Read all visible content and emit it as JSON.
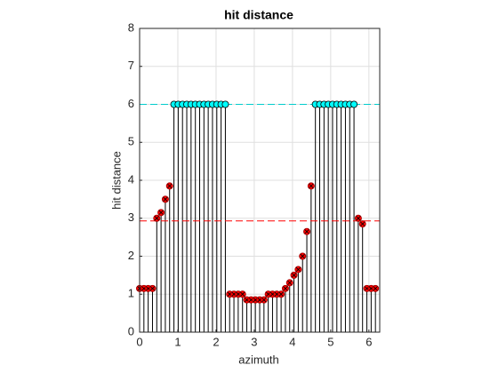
{
  "chart_data": {
    "type": "stem",
    "title": "hit distance",
    "xlabel": "azimuth",
    "ylabel": "hit distance",
    "x": [
      0,
      0.112,
      0.224,
      0.337,
      0.449,
      0.561,
      0.673,
      0.785,
      0.898,
      1.01,
      1.122,
      1.234,
      1.346,
      1.459,
      1.571,
      1.683,
      1.795,
      1.907,
      2.02,
      2.132,
      2.244,
      2.356,
      2.468,
      2.58,
      2.693,
      2.805,
      2.917,
      3.029,
      3.142,
      3.254,
      3.366,
      3.478,
      3.59,
      3.703,
      3.815,
      3.927,
      4.039,
      4.151,
      4.264,
      4.376,
      4.488,
      4.6,
      4.712,
      4.825,
      4.937,
      5.049,
      5.161,
      5.273,
      5.386,
      5.498,
      5.61,
      5.722,
      5.834,
      5.947,
      6.059,
      6.171
    ],
    "series": [
      {
        "color": "#ff0000",
        "marker": "circle-x",
        "values": [
          1.15,
          1.15,
          1.15,
          1.15,
          3.0,
          3.15,
          3.5,
          3.85,
          null,
          null,
          null,
          null,
          null,
          null,
          null,
          null,
          null,
          null,
          null,
          null,
          null,
          1.0,
          1.0,
          1.0,
          1.0,
          0.85,
          0.85,
          0.85,
          0.85,
          0.85,
          1.0,
          1.0,
          1.0,
          1.0,
          1.15,
          1.3,
          1.5,
          1.65,
          2.0,
          2.65,
          3.85,
          null,
          null,
          null,
          null,
          null,
          null,
          null,
          null,
          null,
          null,
          3.0,
          2.85,
          1.15,
          1.15,
          1.15
        ]
      },
      {
        "color": "#00ffff",
        "marker": "circle",
        "values": [
          null,
          null,
          null,
          null,
          null,
          null,
          null,
          null,
          6,
          6,
          6,
          6,
          6,
          6,
          6,
          6,
          6,
          6,
          6,
          6,
          6,
          null,
          null,
          null,
          null,
          null,
          null,
          null,
          null,
          null,
          null,
          null,
          null,
          null,
          null,
          null,
          null,
          null,
          null,
          null,
          null,
          6,
          6,
          6,
          6,
          6,
          6,
          6,
          6,
          6,
          6,
          null,
          null,
          null,
          null,
          null
        ]
      }
    ],
    "hlines": [
      {
        "value": 6,
        "color": "#00cccc"
      },
      {
        "value": 2.93,
        "color": "#ff0000"
      }
    ],
    "xlim": [
      0,
      6.2832
    ],
    "ylim": [
      0,
      8
    ],
    "xticks": [
      0,
      1,
      2,
      3,
      4,
      5,
      6
    ],
    "yticks": [
      0,
      1,
      2,
      3,
      4,
      5,
      6,
      7,
      8
    ],
    "grid": true
  }
}
